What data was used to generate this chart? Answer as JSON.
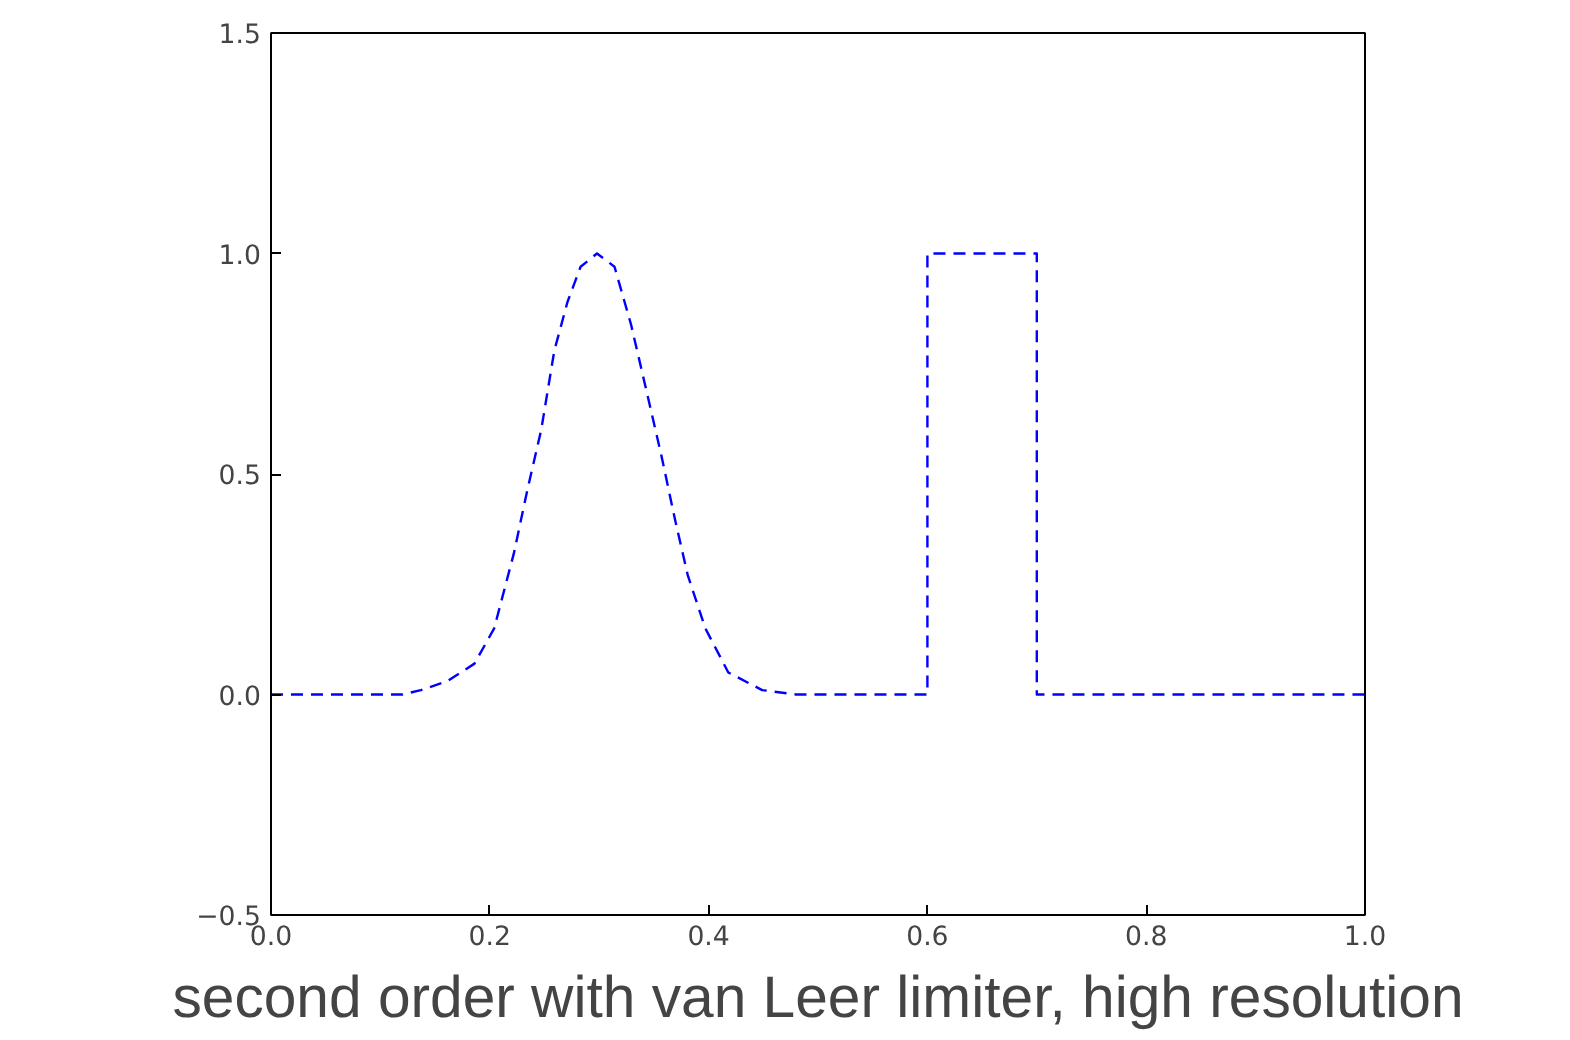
{
  "chart_data": {
    "type": "line",
    "annotations": [
      "second order with van Leer limiter, high resolution"
    ],
    "x": [
      0,
      0.12,
      0.137,
      0.161,
      0.186,
      0.204,
      0.222,
      0.234,
      0.247,
      0.259,
      0.271,
      0.283,
      0.298,
      0.314,
      0.329,
      0.344,
      0.357,
      0.369,
      0.381,
      0.397,
      0.418,
      0.449,
      0.48,
      0.6,
      0.6,
      0.7,
      0.7,
      1
    ],
    "series": [
      {
        "color": "#0000ff",
        "values": [
          0,
          0,
          0.01,
          0.03,
          0.07,
          0.15,
          0.32,
          0.46,
          0.6,
          0.78,
          0.89,
          0.97,
          1.0,
          0.97,
          0.84,
          0.68,
          0.54,
          0.4,
          0.27,
          0.15,
          0.05,
          0.01,
          0,
          0,
          1,
          1,
          0,
          0
        ]
      }
    ],
    "xlim": [
      0,
      1
    ],
    "ylim": [
      -0.5,
      1.5
    ],
    "xticks": [
      {
        "value": 0,
        "label": "0.0"
      },
      0.2,
      0.4,
      0.6,
      0.8,
      {
        "value": 1,
        "label": "1.0"
      }
    ],
    "yticks": [
      {
        "value": -0.5,
        "label": "−0.5"
      },
      {
        "value": 0,
        "label": "0.0"
      },
      0.5,
      {
        "value": 1,
        "label": "1.0"
      },
      1.5
    ],
    "grid": false,
    "line_style": "dashed",
    "marker": "none"
  }
}
